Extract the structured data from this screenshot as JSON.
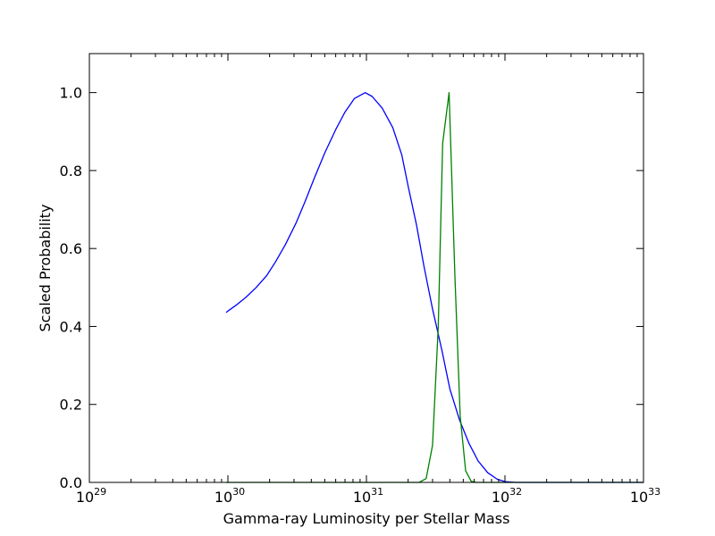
{
  "chart_data": {
    "type": "line",
    "title": "",
    "xlabel": "Gamma-ray Luminosity per Stellar Mass",
    "ylabel": "Scaled Probability",
    "xscale": "log",
    "xlim": [
      1e+29,
      1e+33
    ],
    "ylim": [
      0.0,
      1.1
    ],
    "grid": false,
    "legend": "none",
    "x_ticks": [
      {
        "base": "10",
        "exp": "29",
        "value": 1e+29
      },
      {
        "base": "10",
        "exp": "30",
        "value": 1e+30
      },
      {
        "base": "10",
        "exp": "31",
        "value": 1e+31
      },
      {
        "base": "10",
        "exp": "32",
        "value": 1e+32
      },
      {
        "base": "10",
        "exp": "33",
        "value": 1e+33
      }
    ],
    "y_ticks": [
      {
        "label": "0.0",
        "value": 0.0
      },
      {
        "label": "0.2",
        "value": 0.2
      },
      {
        "label": "0.4",
        "value": 0.4
      },
      {
        "label": "0.6",
        "value": 0.6
      },
      {
        "label": "0.8",
        "value": 0.8
      },
      {
        "label": "1.0",
        "value": 1.0
      }
    ],
    "series": [
      {
        "color": "#0000ff",
        "points": [
          [
            9.7e+29,
            0.436
          ],
          [
            1.15e+30,
            0.455
          ],
          [
            1.35e+30,
            0.475
          ],
          [
            1.6e+30,
            0.5
          ],
          [
            1.9e+30,
            0.53
          ],
          [
            2.2e+30,
            0.565
          ],
          [
            2.6e+30,
            0.61
          ],
          [
            3.1e+30,
            0.665
          ],
          [
            3.6e+30,
            0.72
          ],
          [
            4.2e+30,
            0.78
          ],
          [
            5e+30,
            0.845
          ],
          [
            6e+30,
            0.905
          ],
          [
            7e+30,
            0.95
          ],
          [
            8.2e+30,
            0.985
          ],
          [
            9.8e+30,
            1.0
          ],
          [
            1.1e+31,
            0.99
          ],
          [
            1.3e+31,
            0.96
          ],
          [
            1.55e+31,
            0.91
          ],
          [
            1.8e+31,
            0.84
          ],
          [
            2e+31,
            0.76
          ],
          [
            2.3e+31,
            0.66
          ],
          [
            2.6e+31,
            0.555
          ],
          [
            3e+31,
            0.445
          ],
          [
            3.5e+31,
            0.34
          ],
          [
            4e+31,
            0.24
          ],
          [
            4.7e+31,
            0.16
          ],
          [
            5.5e+31,
            0.1
          ],
          [
            6.4e+31,
            0.055
          ],
          [
            7.5e+31,
            0.025
          ],
          [
            8.8e+31,
            0.008
          ],
          [
            1e+32,
            0.002
          ],
          [
            1.2e+32,
            0.0
          ],
          [
            1e+33,
            0.0
          ]
        ]
      },
      {
        "color": "#008000",
        "points": [
          [
            9.7e+29,
            0.0
          ],
          [
            1.65e+31,
            0.0
          ],
          [
            2.4e+31,
            0.0
          ],
          [
            2.7e+31,
            0.01
          ],
          [
            3e+31,
            0.095
          ],
          [
            3.3e+31,
            0.4
          ],
          [
            3.55e+31,
            0.87
          ],
          [
            3.95e+31,
            1.0
          ],
          [
            4.35e+31,
            0.53
          ],
          [
            4.75e+31,
            0.17
          ],
          [
            5.2e+31,
            0.03
          ],
          [
            5.7e+31,
            0.003
          ],
          [
            6.2e+31,
            0.0
          ],
          [
            1e+33,
            0.0
          ]
        ]
      }
    ]
  }
}
